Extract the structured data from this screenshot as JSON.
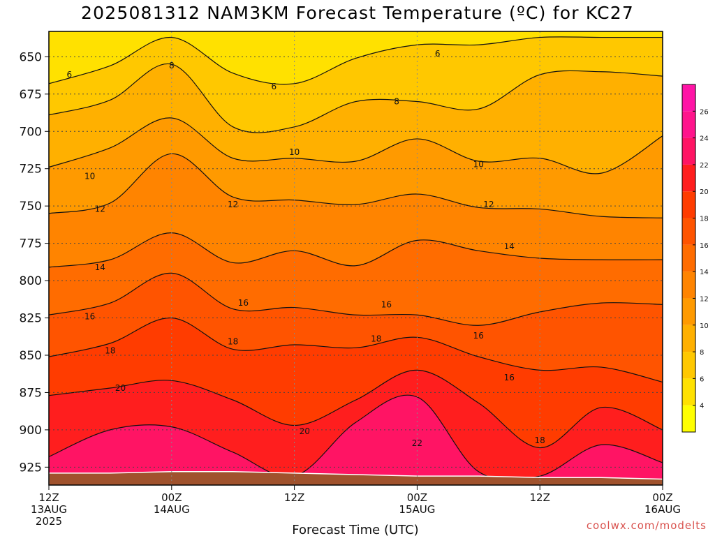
{
  "title": "2025081312 NAM3KM Forecast Temperature (ºC) for KC27",
  "credit": "coolwx.com/modelts",
  "colors": {
    "ground": "#a0522d",
    "contour_line": "#111111",
    "gridline": "#444444"
  },
  "chart_data": {
    "type": "contour",
    "title": "2025081312 NAM3KM Forecast Temperature (ºC) for KC27",
    "xlabel": "Forecast Time (UTC)",
    "ylabel": "",
    "y_axis": "pressure (hPa), decreasing upward",
    "ylim": [
      937,
      633
    ],
    "y_ticks": [
      650,
      675,
      700,
      725,
      750,
      775,
      800,
      825,
      850,
      875,
      900,
      925
    ],
    "x_hours_range": [
      0,
      60
    ],
    "x_ticks": [
      {
        "hour": 0,
        "label": "12Z",
        "sub": "13AUG",
        "sub2": "2025"
      },
      {
        "hour": 12,
        "label": "00Z",
        "sub": "14AUG",
        "sub2": ""
      },
      {
        "hour": 24,
        "label": "12Z",
        "sub": "",
        "sub2": ""
      },
      {
        "hour": 36,
        "label": "00Z",
        "sub": "15AUG",
        "sub2": ""
      },
      {
        "hour": 48,
        "label": "12Z",
        "sub": "",
        "sub2": ""
      },
      {
        "hour": 60,
        "label": "00Z",
        "sub": "16AUG",
        "sub2": ""
      }
    ],
    "grid": true,
    "colorbar": {
      "placement": "right",
      "levels": [
        2,
        4,
        6,
        8,
        10,
        12,
        14,
        16,
        18,
        20,
        22,
        24,
        26,
        28
      ],
      "colors": [
        "#ffff00",
        "#ffe100",
        "#ffc800",
        "#ffb000",
        "#ff9a00",
        "#ff8400",
        "#ff6c00",
        "#ff5400",
        "#ff3c00",
        "#ff1e1e",
        "#ff1464",
        "#ff148c",
        "#ff14a6"
      ],
      "tick_labels": [
        "4",
        "6",
        "8",
        "10",
        "12",
        "14",
        "16",
        "18",
        "20",
        "22",
        "24",
        "26"
      ]
    },
    "ground_surface_hPa": [
      929,
      929,
      928,
      928,
      929,
      930,
      931,
      931,
      932,
      932,
      933
    ],
    "isotherms": [
      {
        "temp_c": 6,
        "hours": [
          0,
          6,
          12,
          18,
          24,
          30,
          36,
          42,
          48,
          54,
          60
        ],
        "pressure_hPa": [
          668,
          656,
          637,
          661,
          668,
          651,
          642,
          642,
          637,
          637,
          637
        ]
      },
      {
        "temp_c": 8,
        "hours": [
          0,
          6,
          12,
          18,
          24,
          30,
          36,
          42,
          48,
          54,
          60
        ],
        "pressure_hPa": [
          689,
          679,
          655,
          697,
          697,
          680,
          680,
          685,
          662,
          660,
          663
        ]
      },
      {
        "temp_c": 10,
        "hours": [
          0,
          6,
          12,
          18,
          24,
          30,
          36,
          42,
          48,
          54,
          60
        ],
        "pressure_hPa": [
          724,
          711,
          691,
          718,
          718,
          720,
          705,
          720,
          718,
          728,
          703
        ]
      },
      {
        "temp_c": 12,
        "hours": [
          0,
          6,
          12,
          18,
          24,
          30,
          36,
          42,
          48,
          54,
          60
        ],
        "pressure_hPa": [
          755,
          748,
          715,
          744,
          746,
          749,
          742,
          751,
          752,
          757,
          758
        ]
      },
      {
        "temp_c": 14,
        "hours": [
          0,
          6,
          12,
          18,
          24,
          30,
          36,
          42,
          48,
          54,
          60
        ],
        "pressure_hPa": [
          791,
          786,
          768,
          788,
          780,
          790,
          773,
          780,
          785,
          786,
          786
        ]
      },
      {
        "temp_c": 16,
        "hours": [
          0,
          6,
          12,
          18,
          24,
          30,
          36,
          42,
          48,
          54,
          60
        ],
        "pressure_hPa": [
          823,
          815,
          795,
          819,
          818,
          823,
          823,
          830,
          821,
          815,
          816
        ]
      },
      {
        "temp_c": 18,
        "hours": [
          0,
          6,
          12,
          18,
          24,
          30,
          36,
          42,
          48,
          54,
          60
        ],
        "pressure_hPa": [
          851,
          842,
          825,
          846,
          843,
          845,
          838,
          851,
          860,
          858,
          868
        ]
      },
      {
        "temp_c": 20,
        "hours": [
          0,
          6,
          12,
          18,
          24,
          30,
          36,
          42,
          48,
          54,
          60
        ],
        "pressure_hPa": [
          877,
          872,
          867,
          880,
          897,
          880,
          860,
          882,
          912,
          885,
          900
        ]
      },
      {
        "temp_c": 22,
        "hours": [
          0,
          6,
          12,
          18,
          24,
          30,
          36,
          42,
          48,
          54,
          60
        ],
        "pressure_hPa": [
          918,
          900,
          898,
          915,
          931,
          895,
          878,
          928,
          931,
          910,
          922
        ]
      }
    ],
    "contour_labels": [
      {
        "text": "6",
        "hour": 2,
        "pressure_hPa": 662
      },
      {
        "text": "8",
        "hour": 12,
        "pressure_hPa": 656
      },
      {
        "text": "6",
        "hour": 22,
        "pressure_hPa": 670
      },
      {
        "text": "6",
        "hour": 38,
        "pressure_hPa": 648
      },
      {
        "text": "8",
        "hour": 34,
        "pressure_hPa": 680
      },
      {
        "text": "10",
        "hour": 4,
        "pressure_hPa": 730
      },
      {
        "text": "10",
        "hour": 24,
        "pressure_hPa": 714
      },
      {
        "text": "10",
        "hour": 42,
        "pressure_hPa": 722
      },
      {
        "text": "12",
        "hour": 5,
        "pressure_hPa": 752
      },
      {
        "text": "12",
        "hour": 18,
        "pressure_hPa": 749
      },
      {
        "text": "12",
        "hour": 43,
        "pressure_hPa": 749
      },
      {
        "text": "14",
        "hour": 5,
        "pressure_hPa": 791
      },
      {
        "text": "14",
        "hour": 45,
        "pressure_hPa": 777
      },
      {
        "text": "16",
        "hour": 4,
        "pressure_hPa": 824
      },
      {
        "text": "16",
        "hour": 19,
        "pressure_hPa": 815
      },
      {
        "text": "16",
        "hour": 33,
        "pressure_hPa": 816
      },
      {
        "text": "16",
        "hour": 42,
        "pressure_hPa": 837
      },
      {
        "text": "16",
        "hour": 45,
        "pressure_hPa": 865
      },
      {
        "text": "18",
        "hour": 6,
        "pressure_hPa": 847
      },
      {
        "text": "18",
        "hour": 18,
        "pressure_hPa": 841
      },
      {
        "text": "18",
        "hour": 32,
        "pressure_hPa": 839
      },
      {
        "text": "18",
        "hour": 48,
        "pressure_hPa": 907
      },
      {
        "text": "20",
        "hour": 7,
        "pressure_hPa": 872
      },
      {
        "text": "20",
        "hour": 25,
        "pressure_hPa": 901
      },
      {
        "text": "22",
        "hour": 36,
        "pressure_hPa": 909
      }
    ]
  }
}
